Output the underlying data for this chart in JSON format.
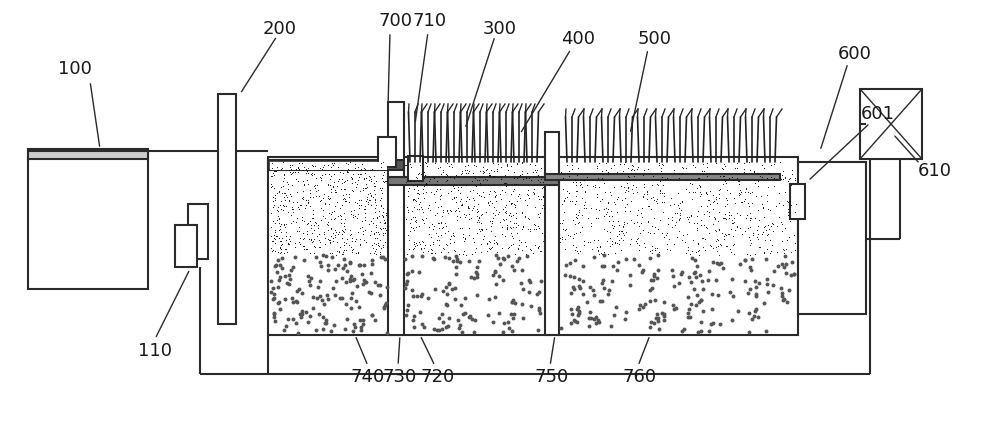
{
  "bg_color": "#ffffff",
  "lc": "#2a2a2a",
  "lw": 1.5,
  "lw_thin": 1.0,
  "label_fs": 13,
  "label_color": "#1a1a1a"
}
